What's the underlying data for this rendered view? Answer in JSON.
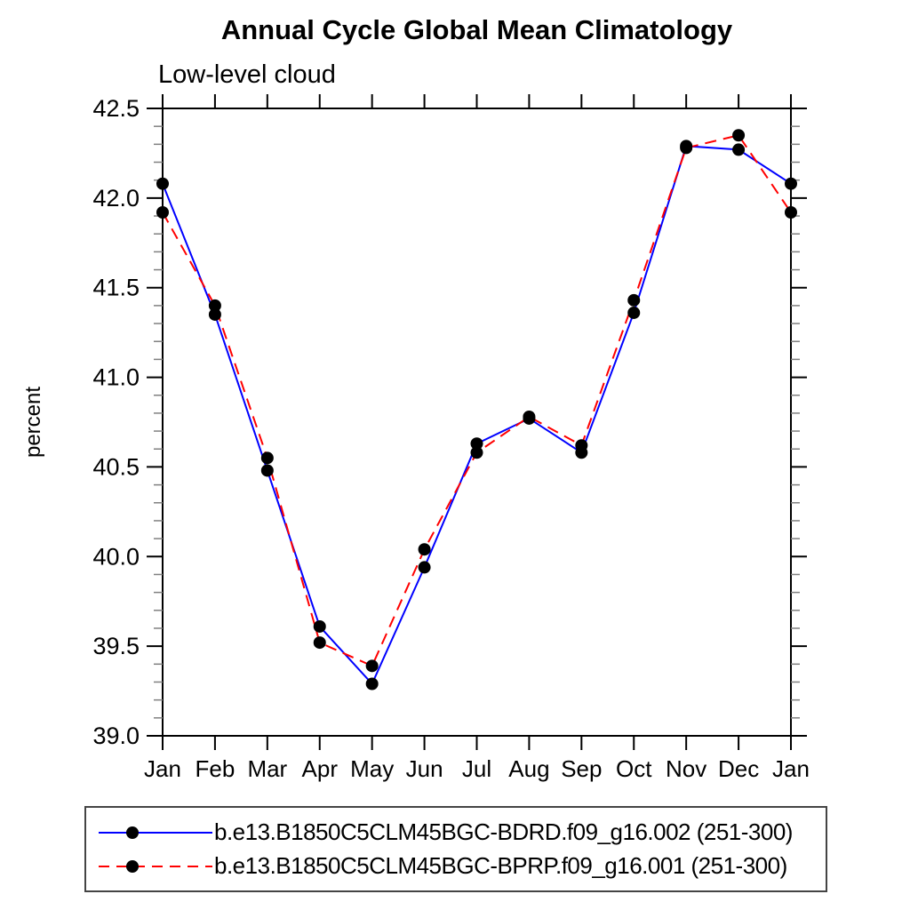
{
  "chart_data": {
    "type": "line",
    "title": "Annual Cycle Global Mean Climatology",
    "subtitle": "Low-level cloud",
    "ylabel": "percent",
    "xlabel": "",
    "categories": [
      "Jan",
      "Feb",
      "Mar",
      "Apr",
      "May",
      "Jun",
      "Jul",
      "Aug",
      "Sep",
      "Oct",
      "Nov",
      "Dec",
      "Jan"
    ],
    "ylim": [
      39.0,
      42.5
    ],
    "y_major_step": 0.5,
    "y_minor_step": 0.1,
    "y_tick_labels": [
      "39.0",
      "39.5",
      "40.0",
      "40.5",
      "41.0",
      "41.5",
      "42.0",
      "42.5"
    ],
    "grid": false,
    "legend_position": "bottom",
    "axis_color": "#000000",
    "minor_tick_color": "#808080",
    "marker_color": "#000000",
    "series": [
      {
        "name": "b.e13.B1850C5CLM45BGC-BDRD.f09_g16.002 (251-300)",
        "color": "#0000ff",
        "style": "solid",
        "marker": "circle",
        "values": [
          42.08,
          41.35,
          40.48,
          39.61,
          39.29,
          39.94,
          40.63,
          40.77,
          40.58,
          41.36,
          42.29,
          42.27,
          42.08
        ]
      },
      {
        "name": "b.e13.B1850C5CLM45BGC-BPRP.f09_g16.001 (251-300)",
        "color": "#ff0000",
        "style": "dashed",
        "marker": "circle",
        "values": [
          41.92,
          41.4,
          40.55,
          39.52,
          39.39,
          40.04,
          40.58,
          40.78,
          40.62,
          41.43,
          42.28,
          42.35,
          41.92
        ]
      }
    ]
  }
}
